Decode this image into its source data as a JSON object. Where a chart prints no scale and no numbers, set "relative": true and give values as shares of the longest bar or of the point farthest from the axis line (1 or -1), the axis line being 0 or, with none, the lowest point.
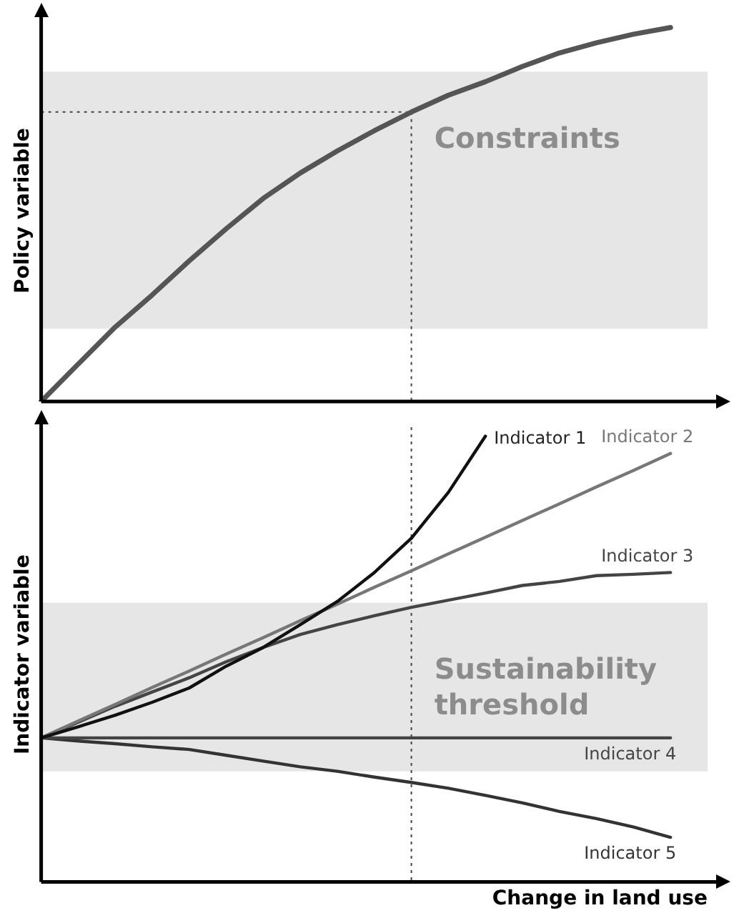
{
  "chart_data": [
    {
      "type": "line",
      "ylabel": "Policy variable",
      "relative": true,
      "legend": false,
      "marker": "none",
      "line_style": "solid",
      "categories": [
        null,
        null,
        null,
        null,
        null,
        null,
        null,
        null,
        null,
        null,
        null,
        null,
        null,
        null,
        null,
        null,
        null,
        null,
        null
      ],
      "series": [
        {
          "color": "#555555",
          "values": [
            0,
            0.1,
            0.199,
            0.285,
            0.376,
            0.462,
            0.543,
            0.611,
            0.67,
            0.724,
            0.774,
            0.819,
            0.855,
            0.896,
            0.932,
            0.959,
            0.982,
            1.0,
            null
          ]
        }
      ],
      "bands": [
        {
          "axis": "y",
          "from": 0.195,
          "to": 0.882,
          "label": "Constraints",
          "color": "#e6e6e6"
        }
      ],
      "ref_lines": [
        {
          "axis": "y",
          "value": 0.774,
          "line_style": "dotted",
          "color": "#444444"
        }
      ]
    },
    {
      "type": "line",
      "ylabel": "Indicator variable",
      "xlabel": "Change in land use",
      "relative": true,
      "legend": false,
      "marker": "none",
      "line_style": "solid",
      "categories": [
        null,
        null,
        null,
        null,
        null,
        null,
        null,
        null,
        null,
        null,
        null,
        null,
        null,
        null,
        null,
        null,
        null,
        null,
        null
      ],
      "series": [
        {
          "name": "Indicator 1",
          "color": "#111111",
          "values": [
            0.323,
            0.348,
            0.374,
            0.403,
            0.435,
            0.484,
            0.526,
            0.577,
            0.629,
            0.694,
            0.771,
            0.874,
            1.0,
            null,
            null,
            null,
            null,
            null,
            null
          ]
        },
        {
          "name": "Indicator 2",
          "color": "#777777",
          "values": [
            0.323,
            0.361,
            0.398,
            0.436,
            0.473,
            0.511,
            0.548,
            0.586,
            0.623,
            0.661,
            0.698,
            0.736,
            0.773,
            0.811,
            0.848,
            0.886,
            0.923,
            0.961,
            null
          ]
        },
        {
          "name": "Indicator 3",
          "color": "#444444",
          "values": [
            0.323,
            0.358,
            0.394,
            0.426,
            0.458,
            0.494,
            0.526,
            0.555,
            0.577,
            0.597,
            0.616,
            0.632,
            0.648,
            0.665,
            0.674,
            0.687,
            0.69,
            0.694,
            null
          ]
        },
        {
          "name": "Indicator 4",
          "color": "#444444",
          "values": [
            0.323,
            0.323,
            0.323,
            0.323,
            0.323,
            0.323,
            0.323,
            0.323,
            0.323,
            0.323,
            0.323,
            0.323,
            0.323,
            0.323,
            0.323,
            0.323,
            0.323,
            0.323,
            null
          ]
        },
        {
          "name": "Indicator 5",
          "color": "#333333",
          "values": [
            0.323,
            0.316,
            0.31,
            0.303,
            0.297,
            0.284,
            0.271,
            0.258,
            0.248,
            0.235,
            0.223,
            0.21,
            0.194,
            0.177,
            0.158,
            0.142,
            0.123,
            0.1,
            null
          ]
        }
      ],
      "bands": [
        {
          "axis": "y",
          "from": 0.248,
          "to": 0.626,
          "label": "Sustainability threshold",
          "color": "#e6e6e6"
        }
      ]
    }
  ]
}
